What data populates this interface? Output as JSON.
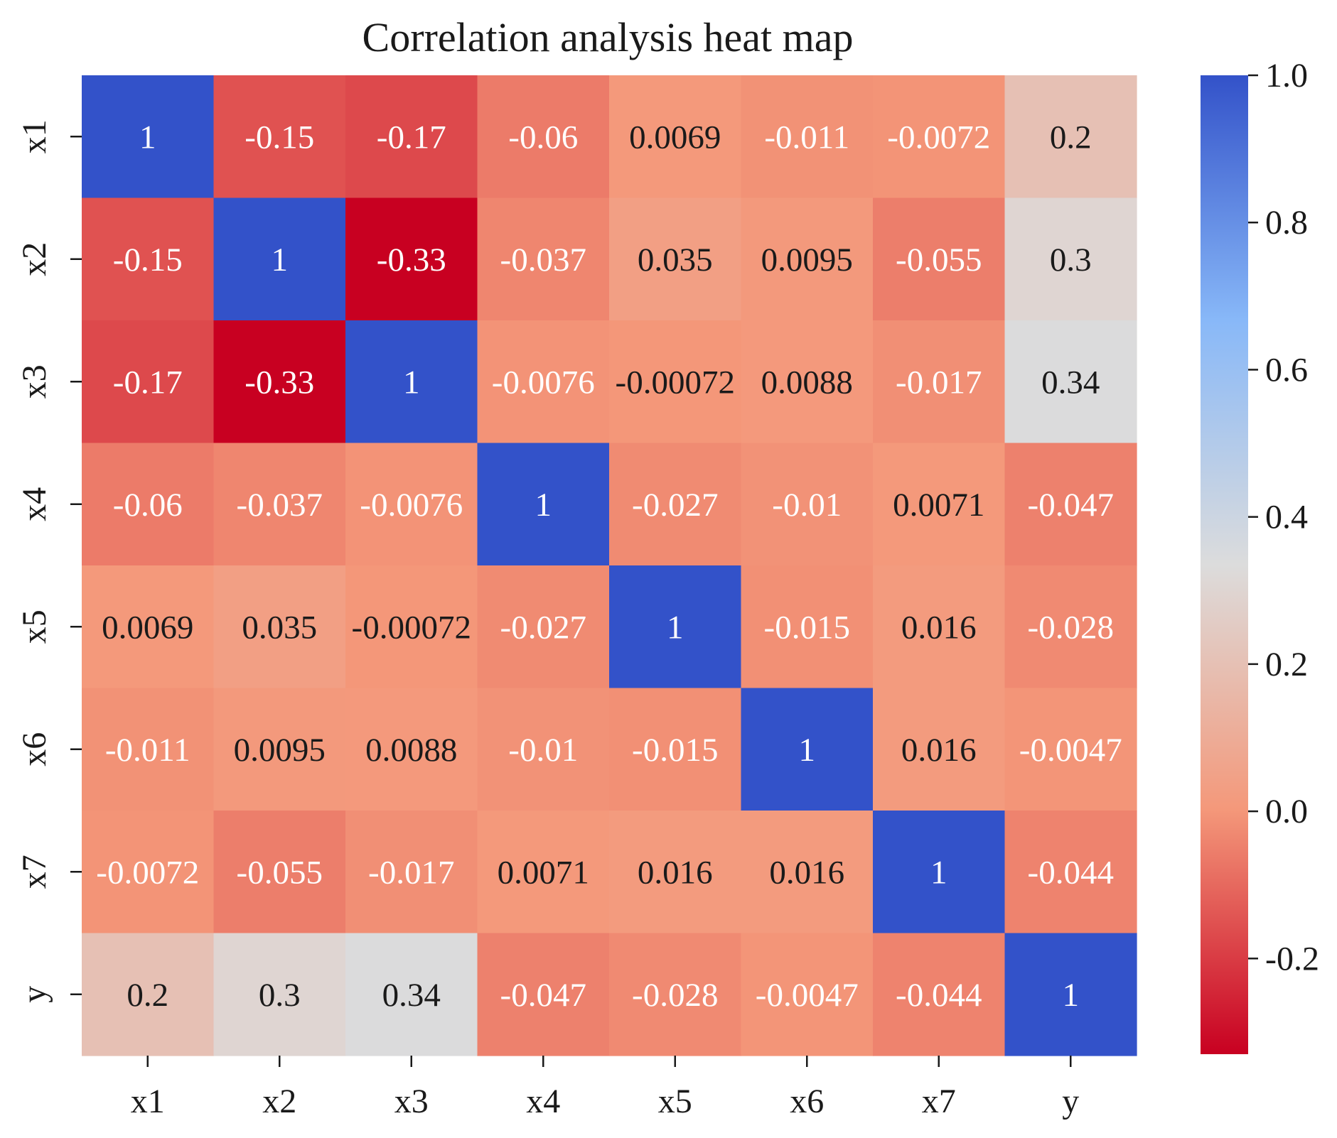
{
  "chart_data": {
    "type": "heatmap",
    "title": "Correlation analysis heat map",
    "x_labels": [
      "x1",
      "x2",
      "x3",
      "x4",
      "x5",
      "x6",
      "x7",
      "y"
    ],
    "y_labels": [
      "x1",
      "x2",
      "x3",
      "x4",
      "x5",
      "x6",
      "x7",
      "y"
    ],
    "values": [
      [
        1,
        -0.15,
        -0.17,
        -0.06,
        0.0069,
        -0.011,
        -0.0072,
        0.2
      ],
      [
        -0.15,
        1,
        -0.33,
        -0.037,
        0.035,
        0.0095,
        -0.055,
        0.3
      ],
      [
        -0.17,
        -0.33,
        1,
        -0.0076,
        -0.00072,
        0.0088,
        -0.017,
        0.34
      ],
      [
        -0.06,
        -0.037,
        -0.0076,
        1,
        -0.027,
        -0.01,
        0.0071,
        -0.047
      ],
      [
        0.0069,
        0.035,
        -0.00072,
        -0.027,
        1,
        -0.015,
        0.016,
        -0.028
      ],
      [
        -0.011,
        0.0095,
        0.0088,
        -0.01,
        -0.015,
        1,
        0.016,
        -0.0047
      ],
      [
        -0.0072,
        -0.055,
        -0.017,
        0.0071,
        0.016,
        0.016,
        1,
        -0.044
      ],
      [
        0.2,
        0.3,
        0.34,
        -0.047,
        -0.028,
        -0.0047,
        -0.044,
        1
      ]
    ],
    "annotations": [
      [
        "1",
        "-0.15",
        "-0.17",
        "-0.06",
        "0.0069",
        "-0.011",
        "-0.0072",
        "0.2"
      ],
      [
        "-0.15",
        "1",
        "-0.33",
        "-0.037",
        "0.035",
        "0.0095",
        "-0.055",
        "0.3"
      ],
      [
        "-0.17",
        "-0.33",
        "1",
        "-0.0076",
        "-0.00072",
        "0.0088",
        "-0.017",
        "0.34"
      ],
      [
        "-0.06",
        "-0.037",
        "-0.0076",
        "1",
        "-0.027",
        "-0.01",
        "0.0071",
        "-0.047"
      ],
      [
        "0.0069",
        "0.035",
        "-0.00072",
        "-0.027",
        "1",
        "-0.015",
        "0.016",
        "-0.028"
      ],
      [
        "-0.011",
        "0.0095",
        "0.0088",
        "-0.01",
        "-0.015",
        "1",
        "0.016",
        "-0.0047"
      ],
      [
        "-0.0072",
        "-0.055",
        "-0.017",
        "0.0071",
        "0.016",
        "0.016",
        "1",
        "-0.044"
      ],
      [
        "0.2",
        "0.3",
        "0.34",
        "-0.047",
        "-0.028",
        "-0.0047",
        "-0.044",
        "1"
      ]
    ],
    "colormap": "coolwarm_r",
    "colormap_stops": [
      "#c80021",
      "#f4987a",
      "#dcdcdc",
      "#88b8f8",
      "#3352c9"
    ],
    "vmin": -0.33,
    "vmax": 1.0,
    "colorbar": {
      "ticks": [
        1.0,
        0.8,
        0.6,
        0.4,
        0.2,
        0.0,
        -0.2
      ],
      "tick_labels": [
        "1.0",
        "0.8",
        "0.6",
        "0.4",
        "0.2",
        "0.0",
        "-0.2"
      ]
    },
    "xlabel": "",
    "ylabel": "",
    "grid": false
  }
}
